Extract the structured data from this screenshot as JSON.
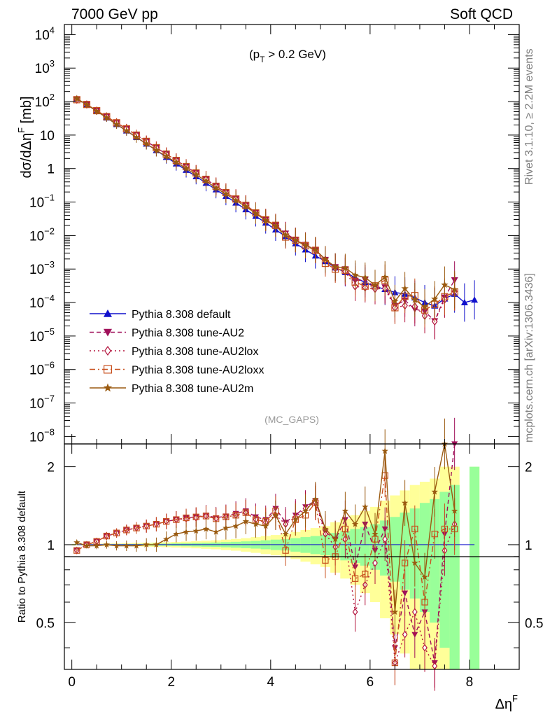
{
  "header": {
    "left": "7000 GeV pp",
    "right": "Soft QCD"
  },
  "side_text": {
    "top": "Rivet 3.1.10, ≥ 2.2M events",
    "bottom": "mcplots.cern.ch [arXiv:1306.3436]"
  },
  "chart_data": {
    "type": "line",
    "annotation": "(p_T > 0.2 GeV)",
    "annotation_parts": {
      "open": "(p",
      "sub": "T",
      "rest": " > 0.2 GeV)"
    },
    "watermark": "(MC_GAPS)",
    "xlabel": "Δη^F",
    "xlabel_parts": {
      "base": "Δη",
      "sup": "F"
    },
    "ylabel": "dσ/dΔη^F [mb]",
    "ylabel_parts": {
      "base": "dσ/dΔη",
      "sup": "F",
      "rest": " [mb]"
    },
    "ratio_ylabel": "Ratio to Pythia 8.308 default",
    "xlim": [
      -0.15,
      9.0
    ],
    "ylim": [
      6e-09,
      20000.0
    ],
    "yscale": "log",
    "ratio_ylim": [
      0.33,
      2.45
    ],
    "ratio_yscale": "log",
    "x_ticks": [
      "0",
      "2",
      "4",
      "6",
      "8"
    ],
    "y_ticks": [
      {
        "base": "10",
        "exp": "4"
      },
      {
        "base": "10",
        "exp": "3"
      },
      {
        "base": "10",
        "exp": "2"
      },
      {
        "base": "10",
        "exp": ""
      },
      {
        "base": "1",
        "exp": ""
      },
      {
        "base": "10",
        "exp": "−1"
      },
      {
        "base": "10",
        "exp": "−2"
      },
      {
        "base": "10",
        "exp": "−3"
      },
      {
        "base": "10",
        "exp": "−4"
      },
      {
        "base": "10",
        "exp": "−5"
      },
      {
        "base": "10",
        "exp": "−6"
      },
      {
        "base": "10",
        "exp": "−7"
      },
      {
        "base": "10",
        "exp": "−8"
      }
    ],
    "ratio_ticks": [
      "2",
      "1",
      "0.5"
    ],
    "legend_position": "bottom-left",
    "series": [
      {
        "name": "Pythia 8.308 default",
        "color": "#1010cc",
        "marker": "triangle-up",
        "dash": "",
        "x": [
          0.1,
          0.3,
          0.5,
          0.7,
          0.9,
          1.1,
          1.3,
          1.5,
          1.7,
          1.9,
          2.1,
          2.3,
          2.5,
          2.7,
          2.9,
          3.1,
          3.3,
          3.5,
          3.7,
          3.9,
          4.1,
          4.3,
          4.5,
          4.7,
          4.9,
          5.1,
          5.3,
          5.5,
          5.7,
          5.9,
          6.1,
          6.3,
          6.5,
          6.7,
          6.9,
          7.1,
          7.3,
          7.5,
          7.7,
          7.9,
          8.1
        ],
        "y": [
          120,
          82,
          52,
          33,
          21,
          13.5,
          8.6,
          5.5,
          3.5,
          2.2,
          1.4,
          0.9,
          0.58,
          0.37,
          0.235,
          0.15,
          0.095,
          0.06,
          0.038,
          0.024,
          0.015,
          0.0095,
          0.0058,
          0.0038,
          0.0025,
          0.0017,
          0.0011,
          0.0008,
          0.00055,
          0.0004,
          0.0003,
          0.00025,
          0.0002,
          0.00018,
          0.00014,
          0.0001,
          8e-05,
          0.00013,
          0.00018,
          0.0001,
          0.00012
        ]
      },
      {
        "name": "Pythia 8.308 tune-AU2",
        "color": "#a0105a",
        "marker": "triangle-down",
        "dash": "6,4"
      },
      {
        "name": "Pythia 8.308 tune-AU2lox",
        "color": "#b3123c",
        "marker": "diamond-open",
        "dash": "2,4"
      },
      {
        "name": "Pythia 8.308 tune-AU2loxx",
        "color": "#c8501e",
        "marker": "square-open",
        "dash": "8,4,2,4"
      },
      {
        "name": "Pythia 8.308 tune-AU2m",
        "color": "#9a5a10",
        "marker": "star",
        "dash": ""
      }
    ],
    "ratios": {
      "x": [
        0.1,
        0.3,
        0.5,
        0.7,
        0.9,
        1.1,
        1.3,
        1.5,
        1.7,
        1.9,
        2.1,
        2.3,
        2.5,
        2.7,
        2.9,
        3.1,
        3.3,
        3.5,
        3.7,
        3.9,
        4.1,
        4.3,
        4.5,
        4.7,
        4.9,
        5.1,
        5.3,
        5.5,
        5.7,
        5.9,
        6.1,
        6.3,
        6.5,
        6.7,
        6.9,
        7.1,
        7.3,
        7.5,
        7.7
      ],
      "AU2": [
        0.95,
        1.0,
        1.03,
        1.08,
        1.11,
        1.14,
        1.16,
        1.18,
        1.2,
        1.23,
        1.25,
        1.27,
        1.28,
        1.3,
        1.27,
        1.29,
        1.32,
        1.35,
        1.28,
        1.25,
        1.38,
        1.22,
        1.3,
        1.4,
        1.48,
        1.12,
        1.05,
        1.25,
        0.82,
        1.2,
        0.95,
        1.15,
        0.4,
        0.65,
        0.45,
        0.55,
        0.35,
        1.1,
        2.6
      ],
      "AU2lox": [
        0.95,
        1.0,
        1.03,
        1.08,
        1.11,
        1.14,
        1.16,
        1.18,
        1.2,
        1.23,
        1.25,
        1.26,
        1.27,
        1.29,
        1.26,
        1.28,
        1.3,
        1.33,
        1.25,
        1.22,
        1.3,
        1.2,
        1.28,
        1.38,
        1.45,
        1.1,
        0.98,
        1.05,
        0.55,
        0.7,
        0.85,
        1.05,
        0.35,
        0.45,
        0.55,
        0.4,
        0.34,
        0.95,
        1.2
      ],
      "AU2loxx": [
        0.95,
        1.0,
        1.03,
        1.08,
        1.11,
        1.14,
        1.16,
        1.18,
        1.2,
        1.23,
        1.25,
        1.27,
        1.28,
        1.29,
        1.26,
        1.28,
        1.3,
        1.33,
        1.25,
        1.23,
        1.35,
        0.95,
        1.25,
        1.3,
        1.45,
        0.87,
        0.9,
        1.15,
        0.74,
        0.77,
        1.05,
        1.85,
        0.35,
        0.85,
        1.15,
        0.6,
        1.1,
        1.15,
        1.15
      ],
      "AU2m": [
        1.02,
        0.99,
        0.99,
        1.0,
        0.99,
        0.99,
        0.99,
        1.0,
        1.0,
        1.05,
        1.1,
        1.12,
        1.13,
        1.15,
        1.12,
        1.16,
        1.18,
        1.23,
        1.2,
        1.18,
        1.3,
        1.1,
        1.25,
        1.35,
        1.5,
        1.15,
        1.05,
        1.35,
        1.2,
        1.4,
        1.1,
        2.3,
        0.55,
        1.45,
        0.85,
        0.75,
        1.6,
        2.6,
        1.35
      ]
    },
    "bands": {
      "x": [
        0.1,
        0.3,
        0.5,
        0.7,
        0.9,
        1.1,
        1.3,
        1.5,
        1.7,
        1.9,
        2.1,
        2.3,
        2.5,
        2.7,
        2.9,
        3.1,
        3.3,
        3.5,
        3.7,
        3.9,
        4.1,
        4.3,
        4.5,
        4.7,
        4.9,
        5.1,
        5.3,
        5.5,
        5.7,
        5.9,
        6.1,
        6.3,
        6.5,
        6.7,
        6.9,
        7.1,
        7.3,
        7.5,
        7.7,
        7.9,
        8.1
      ],
      "inner": [
        0.003,
        0.004,
        0.004,
        0.005,
        0.005,
        0.006,
        0.007,
        0.008,
        0.009,
        0.01,
        0.012,
        0.014,
        0.016,
        0.018,
        0.02,
        0.023,
        0.026,
        0.03,
        0.034,
        0.04,
        0.046,
        0.05,
        0.06,
        0.07,
        0.08,
        0.09,
        0.11,
        0.13,
        0.15,
        0.17,
        0.2,
        0.24,
        0.28,
        0.33,
        0.38,
        0.45,
        0.5,
        0.6,
        0.7,
        0.0,
        1.0
      ],
      "outer": [
        0.006,
        0.008,
        0.009,
        0.01,
        0.011,
        0.013,
        0.015,
        0.017,
        0.019,
        0.022,
        0.025,
        0.028,
        0.032,
        0.036,
        0.04,
        0.046,
        0.052,
        0.06,
        0.07,
        0.08,
        0.09,
        0.1,
        0.12,
        0.14,
        0.16,
        0.18,
        0.22,
        0.26,
        0.3,
        0.35,
        0.4,
        0.48,
        0.55,
        0.62,
        0.7,
        0.75,
        0.8,
        1.0,
        1.0,
        0.0,
        1.0
      ]
    }
  }
}
